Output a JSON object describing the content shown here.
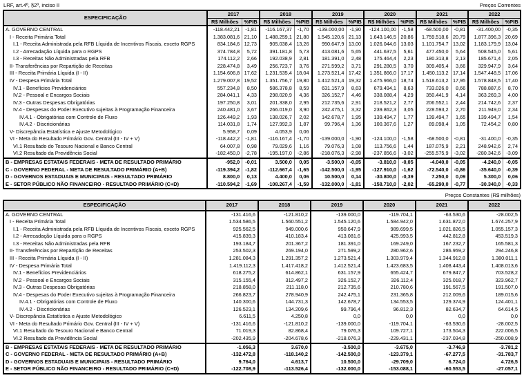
{
  "page": {
    "note": "LRF, art.4º, §2º, inciso II",
    "table1_caption": "Preços Correntes",
    "table2_caption": "Preços Constantes (R$ milhões)"
  },
  "headers": {
    "spec": "ESPECIFICAÇÃO",
    "value": "R$ Milhões",
    "pib": "%PIB"
  },
  "years": [
    "2017",
    "2018",
    "2019",
    "2020",
    "2021",
    "2022"
  ],
  "rows": [
    {
      "label": "A. GOVERNO CENTRAL",
      "indent": 0,
      "bold": false,
      "sep": false,
      "current": [
        [
          "-118.442,21",
          "-1,81"
        ],
        [
          "-116.167,37",
          "-1,70"
        ],
        [
          "-139.000,00",
          "-1,90"
        ],
        [
          "-124.100,00",
          "-1,58"
        ],
        [
          "-68.500,00",
          "-0,81"
        ],
        [
          "-31.400,00",
          "-0,35"
        ]
      ],
      "constant": [
        "-131.416,6",
        "-121.810,2",
        "-139.000,0",
        "-119.704,1",
        "-63.530,6",
        "-28.002,5"
      ]
    },
    {
      "label": "I - Receita Primária Total",
      "indent": 1,
      "bold": false,
      "sep": false,
      "current": [
        [
          "1.383.081,6",
          "21,10"
        ],
        [
          "1.488.259,1",
          "21,80"
        ],
        [
          "1.545.120,6",
          "21,13"
        ],
        [
          "1.643.146,5",
          "20,86"
        ],
        [
          "1.759.518,6",
          "20,79"
        ],
        [
          "1.877.396,3",
          "20,69"
        ]
      ],
      "constant": [
        "1.534.586,5",
        "1.560.551,2",
        "1.545.120,6",
        "1.584.942,0",
        "1.631.872,0",
        "1.674.257,9"
      ]
    },
    {
      "label": "I.1 - Receita Administrada pela RFB Líquida de Incentivos Fiscais, exceto RGPS",
      "indent": 2,
      "bold": false,
      "sep": false,
      "current": [
        [
          "834.184,6",
          "12,73"
        ],
        [
          "905.038,4",
          "13,26"
        ],
        [
          "950.647,9",
          "13,00"
        ],
        [
          "1.026.044,6",
          "13,03"
        ],
        [
          "1.101.754,7",
          "13,02"
        ],
        [
          "1.183.179,9",
          "13,04"
        ]
      ],
      "constant": [
        "925.562,5",
        "949.000,6",
        "950.647,9",
        "989.699,5",
        "1.021.826,5",
        "1.055.157,3"
      ]
    },
    {
      "label": "I.2 - Arrecadação Líquida para o RGPS",
      "indent": 2,
      "bold": false,
      "sep": false,
      "current": [
        [
          "374.784,8",
          "5,72"
        ],
        [
          "391.181,8",
          "5,73"
        ],
        [
          "413.081,6",
          "5,65"
        ],
        [
          "441.637,5",
          "5,61"
        ],
        [
          "477.450,0",
          "5,64"
        ],
        [
          "508.545,0",
          "5,61"
        ]
      ],
      "constant": [
        "415.839,3",
        "410.183,4",
        "413.081,6",
        "425.993,5",
        "442.812,8",
        "453.519,3"
      ]
    },
    {
      "label": "I.3 - Receitas Não Administradas pela RFB",
      "indent": 2,
      "bold": false,
      "sep": false,
      "current": [
        [
          "174.112,2",
          "2,66"
        ],
        [
          "192.038,9",
          "2,81"
        ],
        [
          "181.391,0",
          "2,48"
        ],
        [
          "175.464,4",
          "2,23"
        ],
        [
          "180.313,8",
          "2,13"
        ],
        [
          "185.671,4",
          "2,05"
        ]
      ],
      "constant": [
        "193.184,7",
        "201.367,2",
        "181.391,0",
        "169.249,0",
        "167.232,7",
        "165.581,3"
      ]
    },
    {
      "label": "II- Transferências por Repartição de Receitas",
      "indent": 1,
      "bold": false,
      "sep": false,
      "current": [
        [
          "228.474,8",
          "3,49"
        ],
        [
          "256.723,7",
          "3,76"
        ],
        [
          "271.599,2",
          "3,71"
        ],
        [
          "291.280,5",
          "3,70"
        ],
        [
          "309.405,4",
          "3,66"
        ],
        [
          "329.947,9",
          "3,64"
        ]
      ],
      "constant": [
        "253.502,3",
        "269.194,0",
        "271.599,2",
        "280.962,6",
        "286.959,2",
        "294.246,8"
      ]
    },
    {
      "label": "III - Receita Primária Líquida (I - II)",
      "indent": 1,
      "bold": false,
      "sep": false,
      "current": [
        [
          "1.154.606,8",
          "17,62"
        ],
        [
          "1.231.535,4",
          "18,04"
        ],
        [
          "1.273.521,4",
          "17,42"
        ],
        [
          "1.351.866,0",
          "17,17"
        ],
        [
          "1.450.113,2",
          "17,14"
        ],
        [
          "1.547.448,5",
          "17,06"
        ]
      ],
      "constant": [
        "1.281.084,3",
        "1.291.357,2",
        "1.273.521,4",
        "1.303.979,4",
        "1.344.912,8",
        "1.380.011,1"
      ]
    },
    {
      "label": "IV - Despesa Primária Total",
      "indent": 1,
      "bold": false,
      "sep": false,
      "current": [
        [
          "1.279.007,8",
          "19,52"
        ],
        [
          "1.351.756,7",
          "19,80"
        ],
        [
          "1.412.521,4",
          "19,32"
        ],
        [
          "1.475.966,0",
          "18,74"
        ],
        [
          "1.518.613,2",
          "17,95"
        ],
        [
          "1.578.848,5",
          "17,40"
        ]
      ],
      "constant": [
        "1.419.112,3",
        "1.417.418,2",
        "1.412.521,4",
        "1.423.683,5",
        "1.408.443,4",
        "1.408.013,6"
      ]
    },
    {
      "label": "IV.1 - Benefícios Previdenciários",
      "indent": 2,
      "bold": false,
      "sep": false,
      "current": [
        [
          "557.234,8",
          "8,50"
        ],
        [
          "586.378,8",
          "8,59"
        ],
        [
          "631.157,9",
          "8,63"
        ],
        [
          "679.494,1",
          "8,63"
        ],
        [
          "733.026,0",
          "8,66"
        ],
        [
          "788.887,6",
          "8,70"
        ]
      ],
      "constant": [
        "618.275,2",
        "614.862,1",
        "631.157,9",
        "655.424,7",
        "679.847,7",
        "703.528,2"
      ]
    },
    {
      "label": "IV.2 - Pessoal e Encargos Sociais",
      "indent": 2,
      "bold": false,
      "sep": false,
      "current": [
        [
          "284.041,1",
          "4,33"
        ],
        [
          "298.020,9",
          "4,36"
        ],
        [
          "326.152,7",
          "4,46"
        ],
        [
          "338.088,4",
          "4,29"
        ],
        [
          "350.441,9",
          "4,14"
        ],
        [
          "363.269,3",
          "4,00"
        ]
      ],
      "constant": [
        "315.155,4",
        "312.497,2",
        "326.152,7",
        "326.112,4",
        "325.018,7",
        "323.962,7"
      ]
    },
    {
      "label": "IV.3 - Outras Despesas Obrigatórias",
      "indent": 2,
      "bold": false,
      "sep": false,
      "current": [
        [
          "197.250,8",
          "3,01"
        ],
        [
          "201.338,0",
          "2,95"
        ],
        [
          "212.735,6",
          "2,91"
        ],
        [
          "218.521,2",
          "2,77"
        ],
        [
          "206.552,1",
          "2,44"
        ],
        [
          "214.742,6",
          "2,37"
        ]
      ],
      "constant": [
        "218.858,0",
        "211.118,0",
        "212.735,6",
        "210.780,6",
        "191.567,5",
        "191.507,0"
      ]
    },
    {
      "label": "IV.4 - Despesas do Poder Executivo sujeitas à Programação Financeira",
      "indent": 2,
      "bold": false,
      "sep": false,
      "current": [
        [
          "240.481,0",
          "3,67"
        ],
        [
          "266.019,0",
          "3,90"
        ],
        [
          "242.475,1",
          "3,32"
        ],
        [
          "239.862,3",
          "3,05"
        ],
        [
          "228.593,2",
          "2,70"
        ],
        [
          "211.949,0",
          "2,34"
        ]
      ],
      "constant": [
        "266.823,7",
        "278.940,9",
        "242.475,1",
        "231.365,8",
        "212.009,6",
        "189.015,6"
      ]
    },
    {
      "label": "IV.4.1 - Obrigatórias com Controle de Fluxo",
      "indent": 3,
      "bold": false,
      "sep": false,
      "current": [
        [
          "126.449,2",
          "1,93"
        ],
        [
          "138.026,7",
          "2,02"
        ],
        [
          "142.678,7",
          "1,95"
        ],
        [
          "139.494,7",
          "1,77"
        ],
        [
          "139.494,7",
          "1,65"
        ],
        [
          "139.494,7",
          "1,54"
        ]
      ],
      "constant": [
        "140.300,6",
        "144.731,3",
        "142.678,7",
        "134.553,5",
        "129.374,9",
        "124.401,1"
      ]
    },
    {
      "label": "IV.4.2 - Discricionárias",
      "indent": 3,
      "bold": false,
      "sep": false,
      "current": [
        [
          "114.031,8",
          "1,74"
        ],
        [
          "127.992,3",
          "1,87"
        ],
        [
          "99.796,4",
          "1,36"
        ],
        [
          "100.367,6",
          "1,27"
        ],
        [
          "89.098,4",
          "1,05"
        ],
        [
          "72.454,2",
          "0,80"
        ]
      ],
      "constant": [
        "126.523,1",
        "134.209,6",
        "99.796,4",
        "96.812,3",
        "82.634,7",
        "64.614,5"
      ]
    },
    {
      "label": "V- Discrepância Estatística e Ajuste Metodológico",
      "indent": 1,
      "bold": false,
      "sep": false,
      "current": [
        [
          "5.958,7",
          "0,09"
        ],
        [
          "4.053,9",
          "0,06"
        ],
        [
          "",
          ""
        ],
        [
          "",
          ""
        ],
        [
          "",
          ""
        ],
        [
          "",
          ""
        ]
      ],
      "constant": [
        "6.611,5",
        "4.250,8",
        "0,0",
        "0,0",
        "0,0",
        "0,0"
      ]
    },
    {
      "label": "VI - Meta do Resultado Primário Gov. Central (III - IV + V)",
      "indent": 1,
      "bold": false,
      "sep": false,
      "current": [
        [
          "-118.442,2",
          "-1,81"
        ],
        [
          "-116.167,4",
          "-1,70"
        ],
        [
          "-139.000,0",
          "-1,90"
        ],
        [
          "-124.100,0",
          "-1,58"
        ],
        [
          "-68.500,0",
          "-0,81"
        ],
        [
          "-31.400,0",
          "-0,35"
        ]
      ],
      "constant": [
        "-131.416,6",
        "-121.810,2",
        "-139.000,0",
        "-119.704,1",
        "-63.530,6",
        "-28.002,5"
      ]
    },
    {
      "label": "VI.1 Resultado do Tesouro Nacional e Banco Central",
      "indent": 2,
      "bold": false,
      "sep": false,
      "current": [
        [
          "64.007,8",
          "0,98"
        ],
        [
          "79.029,6",
          "1,16"
        ],
        [
          "79.076,3",
          "1,08"
        ],
        [
          "113.756,6",
          "1,44"
        ],
        [
          "187.075,9",
          "2,21"
        ],
        [
          "248.942,6",
          "2,74"
        ]
      ],
      "constant": [
        "71.019,3",
        "82.868,4",
        "79.076,3",
        "109.727,1",
        "173.504,3",
        "222.006,5"
      ]
    },
    {
      "label": "VI.2 Resultado da Previdência Social",
      "indent": 2,
      "bold": false,
      "sep": false,
      "current": [
        [
          "-182.450,0",
          "-2,78"
        ],
        [
          "-195.197,0",
          "-2,86"
        ],
        [
          "-218.076,3",
          "-2,98"
        ],
        [
          "-237.856,6",
          "-3,02"
        ],
        [
          "-255.575,9",
          "-3,02"
        ],
        [
          "-280.342,6",
          "-3,09"
        ]
      ],
      "constant": [
        "-202.435,9",
        "-204.678,6",
        "-218.076,3",
        "-229.431,1",
        "-237.034,8",
        "-250.008,9"
      ]
    },
    {
      "label": "B -  EMPRESAS ESTATAIS FEDERAIS - META DE RESULTADO PRIMÁRIO",
      "indent": 0,
      "bold": true,
      "sep": true,
      "current": [
        [
          "-952,0",
          "-0,01"
        ],
        [
          "3.500,0",
          "0,05"
        ],
        [
          "-3.500,0",
          "-0,05"
        ],
        [
          "-3.810,0",
          "-0,05"
        ],
        [
          "-4.040,0",
          "-0,05"
        ],
        [
          "-4.240,0",
          "-0,05"
        ]
      ],
      "constant": [
        "-1.056,3",
        "3.670,0",
        "-3.500,0",
        "-3.675,0",
        "-3.746,9",
        "-3.781,2"
      ]
    },
    {
      "label": "C - GOVERNO FEDERAL - META DE RESULTADO PRIMÁRIO (A+B)",
      "indent": 0,
      "bold": true,
      "sep": false,
      "current": [
        [
          "-119.394,2",
          "-1,82"
        ],
        [
          "-112.667,4",
          "-1,65"
        ],
        [
          "-142.500,0",
          "-1,95"
        ],
        [
          "-127.910,0",
          "-1,62"
        ],
        [
          "-72.540,0",
          "-0,86"
        ],
        [
          "-35.640,0",
          "-0,39"
        ]
      ],
      "constant": [
        "-132.472,8",
        "-118.140,2",
        "-142.500,0",
        "-123.379,1",
        "-67.277,5",
        "-31.783,7"
      ]
    },
    {
      "label": "D - GOVERNOS ESTADUAIS E MUNICIPAIS - RESULTADO PRIMÁRIO",
      "indent": 0,
      "bold": true,
      "sep": false,
      "current": [
        [
          "8.800,0",
          "0,13"
        ],
        [
          "4.400,0",
          "0,06"
        ],
        [
          "10.500,0",
          "0,14"
        ],
        [
          "-30.800,0",
          "-0,39"
        ],
        [
          "7.250,0",
          "0,09"
        ],
        [
          "5.300,0",
          "0,06"
        ]
      ],
      "constant": [
        "9.764,0",
        "4.613,7",
        "10.500,0",
        "-29.709,0",
        "6.724,0",
        "4.726,5"
      ]
    },
    {
      "label": "E - SETOR PÚBLICO NÃO FINANCEIRO - RESULTADO PRIMÁRIO (C+D)",
      "indent": 0,
      "bold": true,
      "sep": false,
      "current": [
        [
          "-110.594,2",
          "-1,69"
        ],
        [
          "-108.267,4",
          "-1,59"
        ],
        [
          "-132.000,0",
          "-1,81"
        ],
        [
          "-158.710,0",
          "-2,02"
        ],
        [
          "-65.290,0",
          "-0,77"
        ],
        [
          "-30.340,0",
          "-0,33"
        ]
      ],
      "constant": [
        "-122.708,9",
        "-113.526,4",
        "-132.000,0",
        "-153.088,1",
        "-60.553,5",
        "-27.057,1"
      ]
    }
  ]
}
